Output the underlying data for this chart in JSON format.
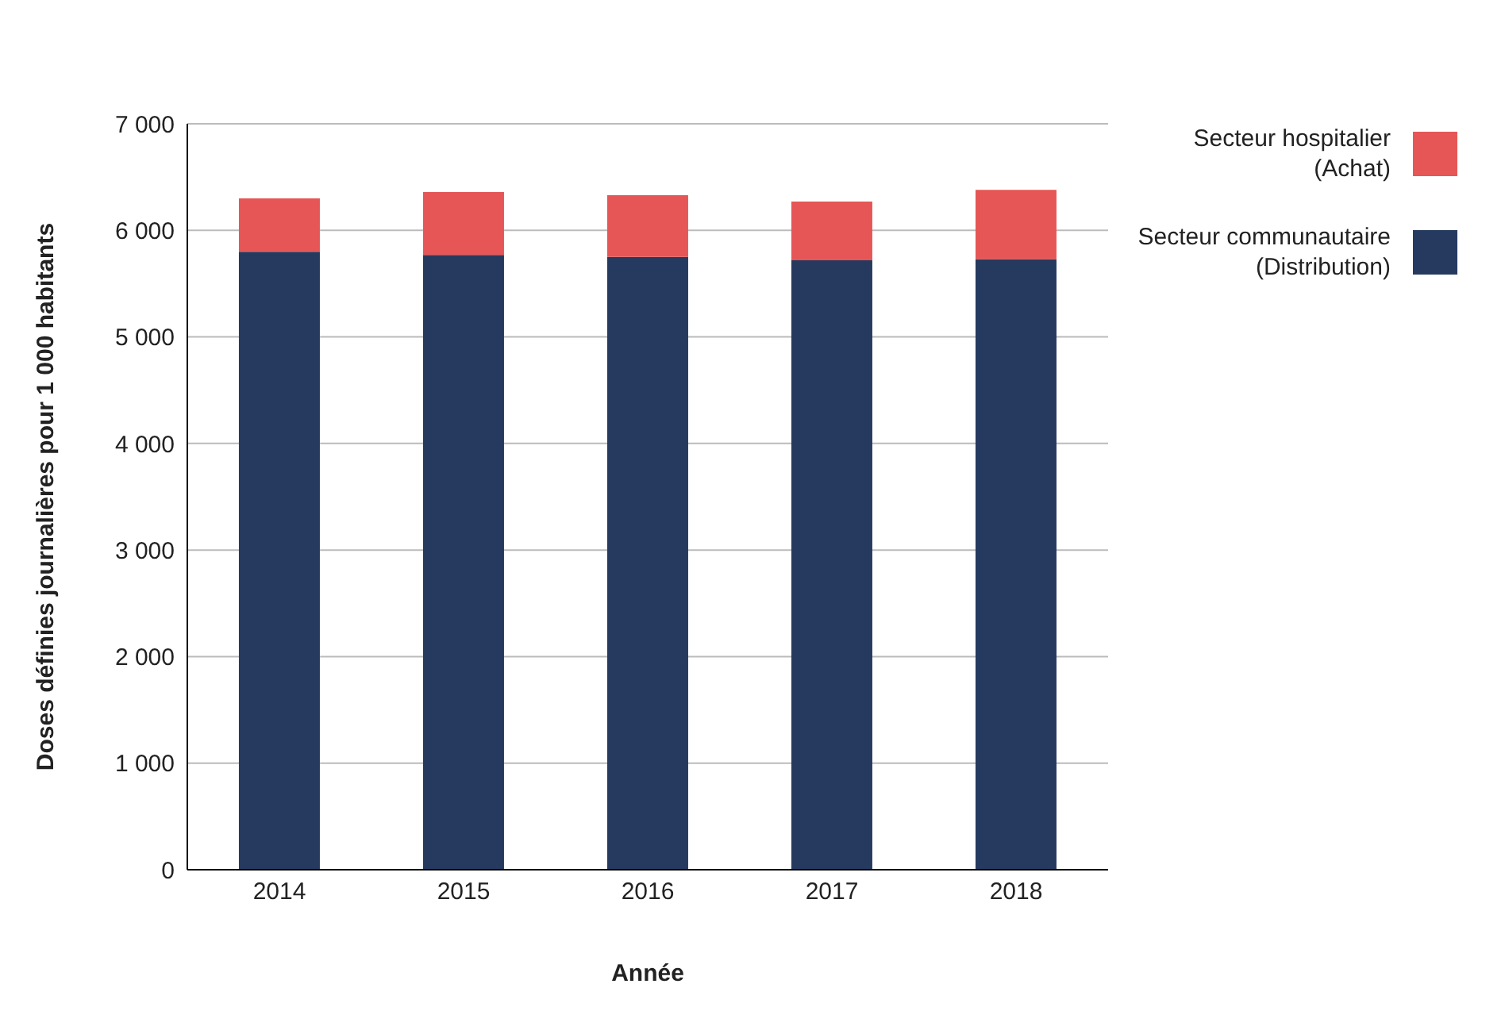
{
  "chart_data": {
    "type": "bar",
    "stacked": true,
    "xlabel": "Année",
    "ylabel": "Doses définies journalières pour 1 000 habitants",
    "categories": [
      "2014",
      "2015",
      "2016",
      "2017",
      "2018"
    ],
    "series": [
      {
        "name": "Secteur communautaire (Distribution)",
        "color": "#263a5f",
        "values": [
          5800,
          5770,
          5750,
          5720,
          5730
        ]
      },
      {
        "name": "Secteur hospitalier (Achat)",
        "color": "#e65656",
        "values": [
          500,
          590,
          580,
          550,
          650
        ]
      }
    ],
    "ylim": [
      0,
      7000
    ],
    "yticks": [
      0,
      {
        "value": 1000,
        "label": "1 000"
      },
      {
        "value": 2000,
        "label": "2 000"
      },
      {
        "value": 3000,
        "label": "3 000"
      },
      {
        "value": 4000,
        "label": "4 000"
      },
      {
        "value": 5000,
        "label": "5 000"
      },
      {
        "value": 6000,
        "label": "6 000"
      },
      {
        "value": 7000,
        "label": "7 000"
      }
    ],
    "grid": "y",
    "legend": "top right"
  }
}
